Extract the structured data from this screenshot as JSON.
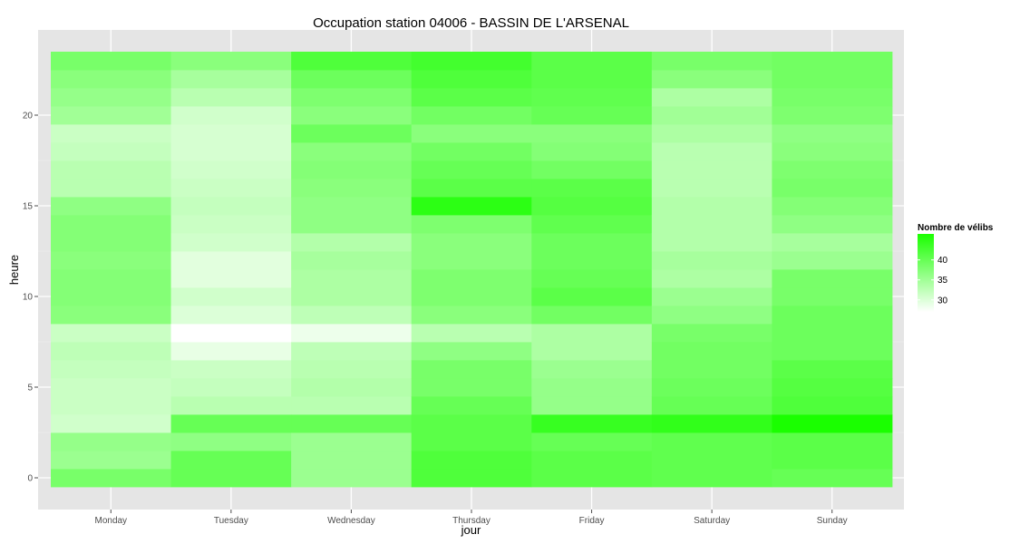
{
  "chart_data": {
    "type": "heatmap",
    "title": "Occupation station 04006 - BASSIN DE L'ARSENAL",
    "xlabel": "jour",
    "ylabel": "heure",
    "x": [
      "Monday",
      "Tuesday",
      "Wednesday",
      "Thursday",
      "Friday",
      "Saturday",
      "Sunday"
    ],
    "y": [
      0,
      1,
      2,
      3,
      4,
      5,
      6,
      7,
      8,
      9,
      10,
      11,
      12,
      13,
      14,
      15,
      16,
      17,
      18,
      19,
      20,
      21,
      22,
      23
    ],
    "ylim": [
      -0.5,
      23.5
    ],
    "y_ticks": [
      0,
      5,
      10,
      15,
      20
    ],
    "grid": true,
    "values": [
      [
        38.5,
        35.5,
        36.0,
        31.0,
        31.5,
        31.5,
        32.0,
        32.5,
        31.5,
        37.0,
        37.5,
        37.5,
        37.0,
        37.5,
        37.5,
        36.5,
        33.0,
        33.0,
        32.0,
        31.5,
        35.0,
        36.0,
        37.0,
        38.5
      ],
      [
        40.0,
        40.0,
        36.5,
        40.0,
        33.0,
        32.0,
        31.5,
        29.0,
        27.0,
        30.0,
        31.0,
        29.5,
        29.5,
        31.0,
        31.5,
        32.0,
        31.5,
        31.0,
        30.5,
        30.5,
        31.0,
        33.0,
        34.5,
        37.0
      ],
      [
        35.5,
        35.5,
        35.5,
        40.0,
        33.0,
        33.5,
        33.0,
        32.5,
        28.5,
        32.5,
        34.0,
        34.0,
        34.5,
        33.5,
        36.5,
        36.5,
        37.0,
        37.5,
        37.0,
        39.5,
        37.0,
        38.0,
        39.5,
        42.0
      ],
      [
        42.0,
        42.0,
        41.0,
        41.0,
        40.0,
        38.5,
        38.5,
        36.5,
        33.0,
        37.0,
        38.0,
        38.0,
        37.0,
        37.0,
        38.0,
        45.0,
        41.0,
        40.0,
        39.0,
        37.0,
        39.0,
        41.0,
        42.0,
        43.0
      ],
      [
        41.0,
        41.0,
        40.0,
        44.0,
        36.0,
        36.0,
        35.5,
        34.0,
        34.0,
        39.0,
        41.0,
        40.0,
        39.5,
        39.5,
        40.5,
        41.5,
        41.0,
        39.0,
        37.5,
        37.0,
        40.0,
        40.5,
        41.0,
        41.0
      ],
      [
        40.5,
        40.5,
        40.5,
        44.5,
        40.0,
        39.5,
        39.0,
        39.0,
        38.5,
        36.5,
        35.5,
        34.0,
        34.5,
        33.5,
        33.5,
        33.5,
        33.0,
        33.0,
        33.0,
        34.0,
        35.0,
        34.0,
        37.0,
        38.5
      ],
      [
        40.0,
        41.0,
        41.0,
        46.5,
        42.0,
        41.5,
        41.0,
        39.5,
        39.5,
        39.5,
        38.5,
        38.5,
        35.5,
        34.5,
        36.5,
        37.5,
        38.5,
        38.0,
        37.0,
        36.5,
        38.0,
        38.5,
        39.0,
        39.0
      ]
    ],
    "color_min": "#ffffff",
    "color_max": "#1aff00",
    "color_domain": [
      27,
      46.5
    ],
    "legend": {
      "title": "Nombre de vélibs",
      "placement": "right",
      "ticks": [
        30,
        35,
        40
      ]
    }
  }
}
